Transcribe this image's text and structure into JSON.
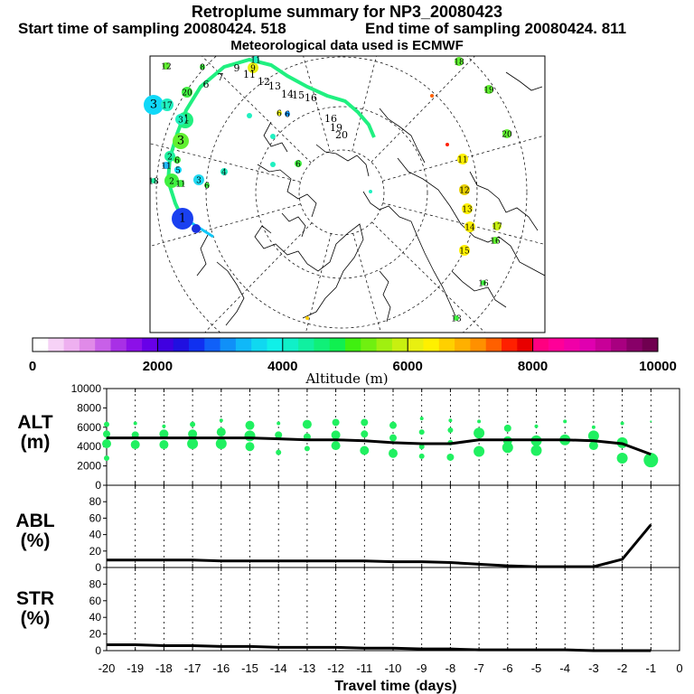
{
  "header": {
    "title": "Retroplume summary for NP3_20080423",
    "start_label": "Start time of sampling 20080424.   518",
    "end_label": "End time of sampling 20080424.   811",
    "met_label": "Meteorological data used is ECMWF"
  },
  "colorbar": {
    "colors": [
      "#ffffff",
      "#f6d2f6",
      "#eeb0f0",
      "#e08ae8",
      "#c860e8",
      "#a830e6",
      "#8c10e8",
      "#6800e8",
      "#4000e0",
      "#2010e0",
      "#1030f0",
      "#1060f8",
      "#1090f8",
      "#10b8f8",
      "#10d8f0",
      "#10f0e8",
      "#10f0c8",
      "#10f0a0",
      "#10f078",
      "#10f050",
      "#40f010",
      "#70f010",
      "#a0f010",
      "#c8f010",
      "#e8f010",
      "#fff000",
      "#ffd000",
      "#ffb000",
      "#ff9000",
      "#ff6000",
      "#ff2000",
      "#e80000",
      "#ff0080",
      "#ff0098",
      "#f000a8",
      "#e000b0",
      "#c80098",
      "#a80080",
      "#880068",
      "#700050"
    ],
    "tick_labels": [
      "0",
      "2000",
      "4000",
      "6000",
      "8000",
      "10000"
    ],
    "label": "Altitude (m)"
  },
  "map": {
    "trajectory_labels": [
      "1",
      "2",
      "3",
      "4",
      "5",
      "6",
      "7",
      "8",
      "9",
      "10",
      "11",
      "12",
      "13",
      "14",
      "15",
      "16",
      "17",
      "18",
      "19",
      "20"
    ],
    "cluster_labels": [
      "11",
      "12",
      "13",
      "14",
      "15",
      "16",
      "17",
      "18",
      "19",
      "20"
    ]
  },
  "panels": {
    "alt": {
      "label": "ALT\n(m)",
      "ticks": [
        "0",
        "2000",
        "4000",
        "6000",
        "8000",
        "10000"
      ]
    },
    "abl": {
      "label": "ABL\n(%)",
      "ticks": [
        "0",
        "20",
        "40",
        "60",
        "80"
      ]
    },
    "str": {
      "label": "STR\n(%)",
      "ticks": [
        "0",
        "20",
        "40",
        "60",
        "80"
      ]
    }
  },
  "x_axis": {
    "ticks": [
      "-20",
      "-19",
      "-18",
      "-17",
      "-16",
      "-15",
      "-14",
      "-13",
      "-12",
      "-11",
      "-10",
      "-9",
      "-8",
      "-7",
      "-6",
      "-5",
      "-4",
      "-3",
      "-2",
      "-1",
      "0"
    ],
    "label": "Travel time (days)"
  },
  "chart_data": [
    {
      "type": "line",
      "title": "ALT",
      "ylabel": "ALT (m)",
      "xlabel": "Travel time (days)",
      "ylim": [
        0,
        10000
      ],
      "xlim": [
        -20,
        0
      ],
      "x": [
        -20,
        -19,
        -18,
        -17,
        -16,
        -15,
        -14,
        -13,
        -12,
        -11,
        -10,
        -9,
        -8,
        -7,
        -6,
        -5,
        -4,
        -3,
        -2,
        -1
      ],
      "series": [
        {
          "name": "mean altitude",
          "values": [
            4900,
            4900,
            4900,
            4900,
            4900,
            4900,
            4800,
            4700,
            4700,
            4600,
            4400,
            4300,
            4300,
            4700,
            4700,
            4700,
            4700,
            4600,
            4300,
            3200
          ]
        }
      ],
      "clusters": [
        {
          "x": -20,
          "points": [
            [
              6300,
              3
            ],
            [
              5300,
              4
            ],
            [
              4300,
              5
            ],
            [
              2800,
              3
            ]
          ]
        },
        {
          "x": -19,
          "points": [
            [
              6400,
              2
            ],
            [
              5200,
              4
            ],
            [
              4200,
              5
            ]
          ]
        },
        {
          "x": -18,
          "points": [
            [
              6100,
              2
            ],
            [
              5300,
              5
            ],
            [
              4200,
              5
            ]
          ]
        },
        {
          "x": -17,
          "points": [
            [
              6300,
              3
            ],
            [
              5300,
              5
            ],
            [
              4300,
              6
            ]
          ]
        },
        {
          "x": -16,
          "points": [
            [
              6700,
              2
            ],
            [
              5500,
              5
            ],
            [
              4300,
              6
            ]
          ]
        },
        {
          "x": -15,
          "points": [
            [
              6200,
              5
            ],
            [
              5100,
              6
            ],
            [
              4000,
              5
            ]
          ]
        },
        {
          "x": -14,
          "points": [
            [
              6400,
              2
            ],
            [
              5200,
              4
            ],
            [
              3400,
              3
            ]
          ]
        },
        {
          "x": -13,
          "points": [
            [
              6300,
              5
            ],
            [
              5000,
              4
            ],
            [
              3800,
              3
            ]
          ]
        },
        {
          "x": -12,
          "points": [
            [
              6500,
              4
            ],
            [
              5200,
              5
            ],
            [
              4100,
              5
            ]
          ]
        },
        {
          "x": -11,
          "points": [
            [
              6500,
              4
            ],
            [
              5300,
              4
            ],
            [
              3600,
              5
            ]
          ]
        },
        {
          "x": -10,
          "points": [
            [
              6200,
              4
            ],
            [
              4900,
              4
            ],
            [
              3300,
              5
            ]
          ]
        },
        {
          "x": -9,
          "points": [
            [
              6900,
              2
            ],
            [
              5500,
              3
            ],
            [
              4000,
              3
            ],
            [
              3000,
              3
            ]
          ]
        },
        {
          "x": -8,
          "points": [
            [
              6700,
              2
            ],
            [
              5700,
              3
            ],
            [
              4400,
              3
            ],
            [
              2900,
              4
            ]
          ]
        },
        {
          "x": -7,
          "points": [
            [
              6600,
              2
            ],
            [
              5400,
              6
            ],
            [
              3500,
              6
            ]
          ]
        },
        {
          "x": -6,
          "points": [
            [
              5900,
              4
            ],
            [
              4600,
              5
            ],
            [
              3900,
              6
            ]
          ]
        },
        {
          "x": -5,
          "points": [
            [
              6100,
              2
            ],
            [
              4600,
              6
            ],
            [
              3600,
              6
            ]
          ]
        },
        {
          "x": -4,
          "points": [
            [
              6600,
              2
            ],
            [
              4700,
              6
            ]
          ]
        },
        {
          "x": -3,
          "points": [
            [
              6000,
              2
            ],
            [
              5100,
              6
            ],
            [
              4100,
              5
            ]
          ]
        },
        {
          "x": -2,
          "points": [
            [
              6400,
              2
            ],
            [
              4400,
              6
            ],
            [
              2800,
              6
            ]
          ]
        },
        {
          "x": -1,
          "points": [
            [
              6600,
              1
            ],
            [
              2600,
              8
            ]
          ]
        }
      ]
    },
    {
      "type": "line",
      "title": "ABL",
      "ylabel": "ABL (%)",
      "xlabel": "Travel time (days)",
      "ylim": [
        0,
        100
      ],
      "xlim": [
        -20,
        0
      ],
      "x": [
        -20,
        -19,
        -18,
        -17,
        -16,
        -15,
        -14,
        -13,
        -12,
        -11,
        -10,
        -9,
        -8,
        -7,
        -6,
        -5,
        -4,
        -3,
        -2,
        -1
      ],
      "series": [
        {
          "name": "ABL fraction",
          "values": [
            9,
            9,
            9,
            9,
            8,
            8,
            8,
            8,
            8,
            8,
            7,
            7,
            6,
            4,
            2,
            1,
            1,
            1,
            10,
            52
          ]
        }
      ]
    },
    {
      "type": "line",
      "title": "STR",
      "ylabel": "STR (%)",
      "xlabel": "Travel time (days)",
      "ylim": [
        0,
        100
      ],
      "xlim": [
        -20,
        0
      ],
      "x": [
        -20,
        -19,
        -18,
        -17,
        -16,
        -15,
        -14,
        -13,
        -12,
        -11,
        -10,
        -9,
        -8,
        -7,
        -6,
        -5,
        -4,
        -3,
        -2,
        -1
      ],
      "series": [
        {
          "name": "stratospheric fraction",
          "values": [
            7,
            7,
            6,
            6,
            5,
            5,
            4,
            4,
            4,
            3,
            3,
            2,
            2,
            1,
            1,
            1,
            1,
            0,
            0,
            0
          ]
        }
      ]
    }
  ]
}
